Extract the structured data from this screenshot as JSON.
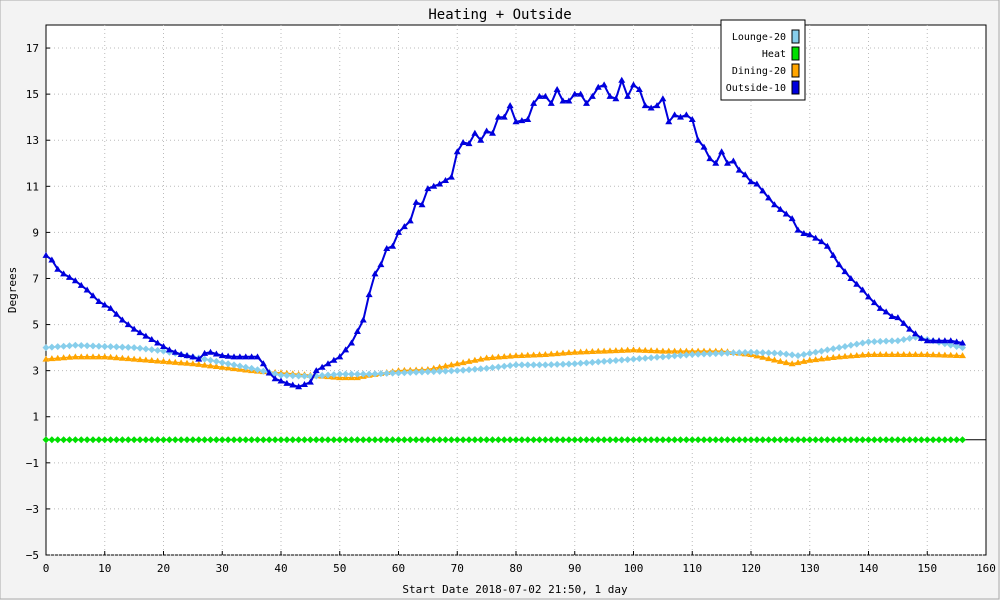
{
  "chart_data": {
    "type": "line",
    "title": "Heating + Outside",
    "xlabel": "Start Date 2018-07-02 21:50, 1 day",
    "ylabel": "Degrees",
    "xlim": [
      0,
      160
    ],
    "ylim": [
      -5,
      18
    ],
    "xticks": [
      "0",
      "10",
      "20",
      "30",
      "40",
      "50",
      "60",
      "70",
      "80",
      "90",
      "100",
      "110",
      "120",
      "130",
      "140",
      "150",
      "160"
    ],
    "yticks": [
      "-5",
      "-3",
      "-1",
      "1",
      "3",
      "5",
      "7",
      "9",
      "11",
      "13",
      "15",
      "17"
    ],
    "grid": true,
    "legend_position": "top-right",
    "series": [
      {
        "name": "Lounge-20",
        "color": "#87ceeb",
        "marker": "diamond",
        "points": [
          [
            0,
            4.0
          ],
          [
            5,
            4.1
          ],
          [
            10,
            4.05
          ],
          [
            15,
            4.0
          ],
          [
            20,
            3.85
          ],
          [
            25,
            3.6
          ],
          [
            30,
            3.35
          ],
          [
            35,
            3.1
          ],
          [
            40,
            2.8
          ],
          [
            45,
            2.75
          ],
          [
            50,
            2.85
          ],
          [
            55,
            2.85
          ],
          [
            60,
            2.9
          ],
          [
            65,
            2.95
          ],
          [
            70,
            3.0
          ],
          [
            75,
            3.1
          ],
          [
            80,
            3.25
          ],
          [
            85,
            3.25
          ],
          [
            90,
            3.3
          ],
          [
            95,
            3.4
          ],
          [
            100,
            3.5
          ],
          [
            105,
            3.6
          ],
          [
            110,
            3.7
          ],
          [
            115,
            3.75
          ],
          [
            120,
            3.8
          ],
          [
            125,
            3.75
          ],
          [
            128,
            3.65
          ],
          [
            130,
            3.75
          ],
          [
            135,
            4.0
          ],
          [
            140,
            4.25
          ],
          [
            145,
            4.3
          ],
          [
            148,
            4.45
          ],
          [
            150,
            4.35
          ],
          [
            155,
            4.05
          ],
          [
            156,
            4.0
          ]
        ]
      },
      {
        "name": "Heat",
        "color": "#00e000",
        "marker": "diamond",
        "points": [
          [
            0,
            0
          ],
          [
            156,
            0
          ]
        ]
      },
      {
        "name": "Dining-20",
        "color": "#ffa500",
        "marker": "triangle",
        "points": [
          [
            0,
            3.5
          ],
          [
            5,
            3.6
          ],
          [
            10,
            3.6
          ],
          [
            15,
            3.5
          ],
          [
            20,
            3.4
          ],
          [
            25,
            3.3
          ],
          [
            30,
            3.15
          ],
          [
            35,
            3.0
          ],
          [
            40,
            2.9
          ],
          [
            45,
            2.8
          ],
          [
            50,
            2.7
          ],
          [
            53,
            2.7
          ],
          [
            55,
            2.8
          ],
          [
            60,
            3.0
          ],
          [
            65,
            3.05
          ],
          [
            70,
            3.3
          ],
          [
            75,
            3.55
          ],
          [
            80,
            3.65
          ],
          [
            85,
            3.7
          ],
          [
            90,
            3.8
          ],
          [
            95,
            3.85
          ],
          [
            100,
            3.9
          ],
          [
            105,
            3.85
          ],
          [
            110,
            3.85
          ],
          [
            115,
            3.85
          ],
          [
            120,
            3.7
          ],
          [
            125,
            3.4
          ],
          [
            127,
            3.3
          ],
          [
            130,
            3.45
          ],
          [
            135,
            3.6
          ],
          [
            140,
            3.7
          ],
          [
            145,
            3.7
          ],
          [
            150,
            3.7
          ],
          [
            156,
            3.65
          ]
        ]
      },
      {
        "name": "Outside-10",
        "color": "#0000dd",
        "marker": "triangle",
        "points": [
          [
            0,
            8.0
          ],
          [
            1,
            7.8
          ],
          [
            2,
            7.4
          ],
          [
            3,
            7.2
          ],
          [
            5,
            6.9
          ],
          [
            7,
            6.5
          ],
          [
            9,
            6.0
          ],
          [
            11,
            5.7
          ],
          [
            13,
            5.2
          ],
          [
            15,
            4.8
          ],
          [
            17,
            4.5
          ],
          [
            19,
            4.2
          ],
          [
            21,
            3.9
          ],
          [
            23,
            3.7
          ],
          [
            25,
            3.6
          ],
          [
            26,
            3.5
          ],
          [
            27,
            3.75
          ],
          [
            28,
            3.8
          ],
          [
            30,
            3.65
          ],
          [
            32,
            3.6
          ],
          [
            34,
            3.6
          ],
          [
            36,
            3.6
          ],
          [
            37,
            3.3
          ],
          [
            38,
            2.9
          ],
          [
            39,
            2.65
          ],
          [
            41,
            2.45
          ],
          [
            43,
            2.3
          ],
          [
            45,
            2.5
          ],
          [
            46,
            3.0
          ],
          [
            48,
            3.3
          ],
          [
            50,
            3.6
          ],
          [
            52,
            4.2
          ],
          [
            54,
            5.2
          ],
          [
            55,
            6.3
          ],
          [
            56,
            7.2
          ],
          [
            57,
            7.6
          ],
          [
            58,
            8.3
          ],
          [
            59,
            8.4
          ],
          [
            60,
            9.0
          ],
          [
            62,
            9.5
          ],
          [
            63,
            10.3
          ],
          [
            64,
            10.2
          ],
          [
            65,
            10.9
          ],
          [
            67,
            11.1
          ],
          [
            69,
            11.4
          ],
          [
            70,
            12.5
          ],
          [
            71,
            12.9
          ],
          [
            72,
            12.85
          ],
          [
            73,
            13.3
          ],
          [
            74,
            13.0
          ],
          [
            75,
            13.4
          ],
          [
            76,
            13.3
          ],
          [
            77,
            14.0
          ],
          [
            78,
            14.0
          ],
          [
            79,
            14.5
          ],
          [
            80,
            13.8
          ],
          [
            82,
            13.9
          ],
          [
            83,
            14.6
          ],
          [
            84,
            14.9
          ],
          [
            85,
            14.9
          ],
          [
            86,
            14.6
          ],
          [
            87,
            15.2
          ],
          [
            88,
            14.7
          ],
          [
            89,
            14.7
          ],
          [
            90,
            15.0
          ],
          [
            91,
            15.0
          ],
          [
            92,
            14.6
          ],
          [
            93,
            14.9
          ],
          [
            94,
            15.3
          ],
          [
            95,
            15.4
          ],
          [
            96,
            14.9
          ],
          [
            97,
            14.8
          ],
          [
            98,
            15.6
          ],
          [
            99,
            14.9
          ],
          [
            100,
            15.4
          ],
          [
            101,
            15.2
          ],
          [
            102,
            14.5
          ],
          [
            103,
            14.4
          ],
          [
            104,
            14.5
          ],
          [
            105,
            14.8
          ],
          [
            106,
            13.8
          ],
          [
            107,
            14.1
          ],
          [
            108,
            14.0
          ],
          [
            109,
            14.1
          ],
          [
            110,
            13.9
          ],
          [
            111,
            13.0
          ],
          [
            112,
            12.7
          ],
          [
            113,
            12.2
          ],
          [
            114,
            12.0
          ],
          [
            115,
            12.5
          ],
          [
            116,
            12.0
          ],
          [
            117,
            12.1
          ],
          [
            118,
            11.7
          ],
          [
            119,
            11.5
          ],
          [
            120,
            11.2
          ],
          [
            121,
            11.1
          ],
          [
            122,
            10.8
          ],
          [
            123,
            10.5
          ],
          [
            124,
            10.2
          ],
          [
            125,
            10.0
          ],
          [
            126,
            9.8
          ],
          [
            127,
            9.6
          ],
          [
            128,
            9.1
          ],
          [
            129,
            8.95
          ],
          [
            130,
            8.9
          ],
          [
            131,
            8.75
          ],
          [
            132,
            8.6
          ],
          [
            133,
            8.4
          ],
          [
            134,
            8.0
          ],
          [
            135,
            7.6
          ],
          [
            136,
            7.3
          ],
          [
            137,
            7.0
          ],
          [
            138,
            6.75
          ],
          [
            139,
            6.5
          ],
          [
            140,
            6.2
          ],
          [
            141,
            5.95
          ],
          [
            142,
            5.7
          ],
          [
            143,
            5.55
          ],
          [
            144,
            5.35
          ],
          [
            145,
            5.3
          ],
          [
            146,
            5.05
          ],
          [
            147,
            4.8
          ],
          [
            148,
            4.6
          ],
          [
            149,
            4.4
          ],
          [
            150,
            4.3
          ],
          [
            151,
            4.3
          ],
          [
            152,
            4.3
          ],
          [
            153,
            4.3
          ],
          [
            154,
            4.3
          ],
          [
            155,
            4.25
          ],
          [
            156,
            4.2
          ]
        ]
      }
    ]
  }
}
